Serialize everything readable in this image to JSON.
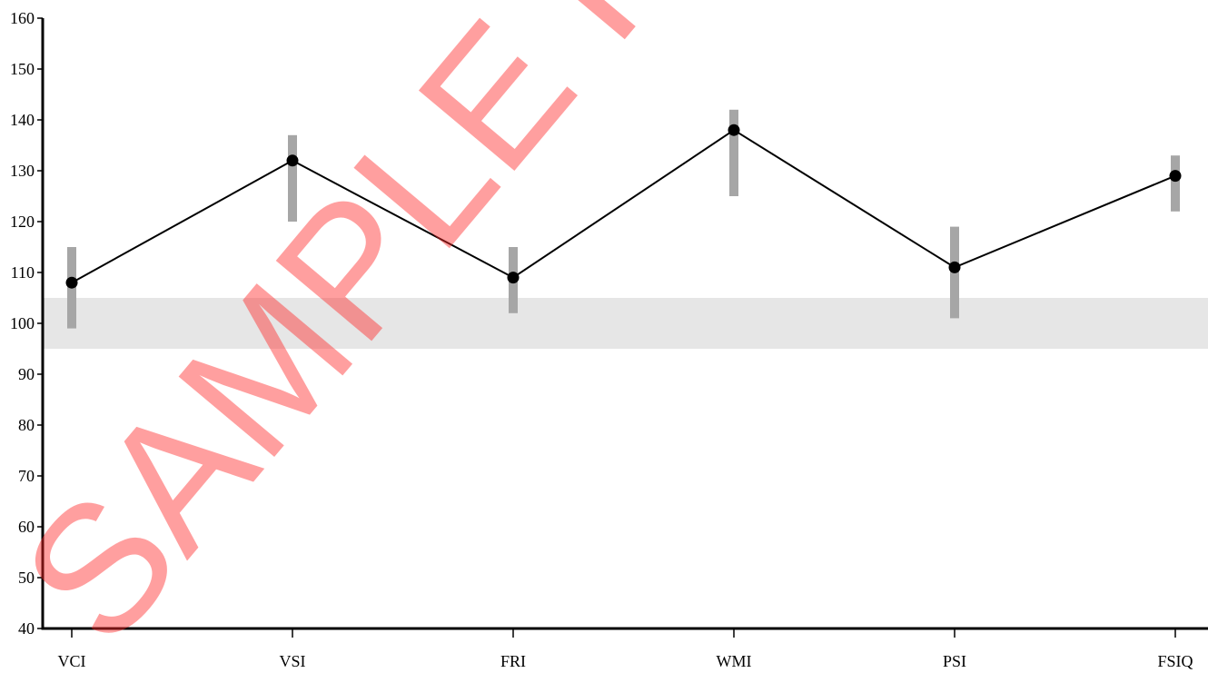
{
  "chart_data": {
    "type": "line",
    "title": "",
    "xlabel": "",
    "ylabel": "",
    "categories": [
      "VCI",
      "VSI",
      "FRI",
      "WMI",
      "PSI",
      "FSIQ"
    ],
    "values": [
      108,
      132,
      109,
      138,
      111,
      129
    ],
    "ci_low": [
      99,
      120,
      102,
      125,
      101,
      122
    ],
    "ci_high": [
      115,
      137,
      115,
      142,
      119,
      133
    ],
    "average_band": [
      95,
      105
    ],
    "ylim": [
      40,
      160
    ],
    "yticks": [
      40,
      50,
      60,
      70,
      80,
      90,
      100,
      110,
      120,
      130,
      140,
      150,
      160
    ],
    "grid": false,
    "colors": {
      "line": "#000000",
      "marker": "#000000",
      "ci_bar": "#a6a6a6",
      "band": "#e6e6e6",
      "watermark": "#ff2a2a"
    }
  },
  "watermark": {
    "text": "SAMPLE REPORT"
  }
}
